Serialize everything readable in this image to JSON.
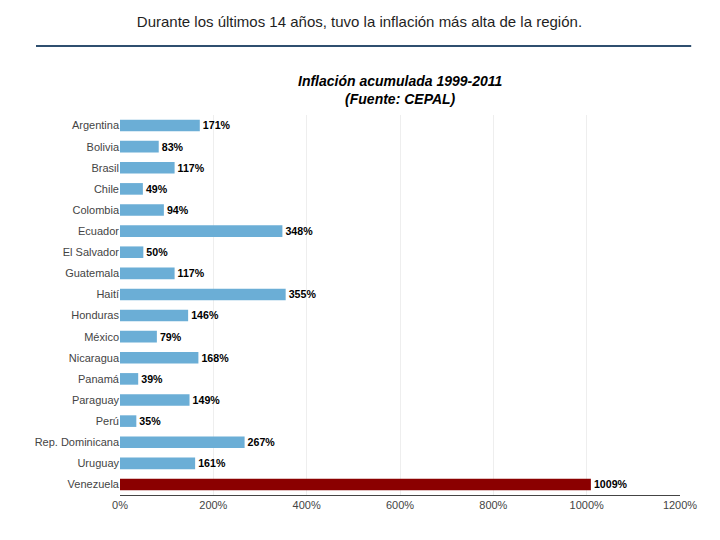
{
  "chart_data": {
    "type": "bar",
    "orientation": "horizontal",
    "title": "Durante los últimos 14 años, tuvo la inflación más alta de la región.",
    "subtitle": "Inflación acumulada 1999-2011\n(Fuente: CEPAL)",
    "categories": [
      "Argentina",
      "Bolivia",
      "Brasil",
      "Chile",
      "Colombia",
      "Ecuador",
      "El Salvador",
      "Guatemala",
      "Haití",
      "Honduras",
      "México",
      "Nicaragua",
      "Panamá",
      "Paraguay",
      "Perú",
      "Rep. Dominicana",
      "Uruguay",
      "Venezuela"
    ],
    "values": [
      171,
      83,
      117,
      49,
      94,
      348,
      50,
      117,
      355,
      146,
      79,
      168,
      39,
      149,
      35,
      267,
      161,
      1009
    ],
    "value_labels": [
      "171%",
      "83%",
      "117%",
      "49%",
      "94%",
      "348%",
      "50%",
      "117%",
      "355%",
      "146%",
      "79%",
      "168%",
      "39%",
      "149%",
      "35%",
      "267%",
      "161%",
      "1009%"
    ],
    "colors": [
      "#6BAED6",
      "#6BAED6",
      "#6BAED6",
      "#6BAED6",
      "#6BAED6",
      "#6BAED6",
      "#6BAED6",
      "#6BAED6",
      "#6BAED6",
      "#6BAED6",
      "#6BAED6",
      "#6BAED6",
      "#6BAED6",
      "#6BAED6",
      "#6BAED6",
      "#6BAED6",
      "#6BAED6",
      "#8B0000"
    ],
    "xlim": [
      0,
      1200
    ],
    "xticks": [
      {
        "value": 0,
        "label": "0%"
      },
      {
        "value": 200,
        "label": "200%"
      },
      {
        "value": 400,
        "label": "400%"
      },
      {
        "value": 600,
        "label": "600%"
      },
      {
        "value": 800,
        "label": "800%"
      },
      {
        "value": 1000,
        "label": "1000%"
      },
      {
        "value": 1200,
        "label": "1200%"
      }
    ],
    "grid": true,
    "data_labels": true
  }
}
